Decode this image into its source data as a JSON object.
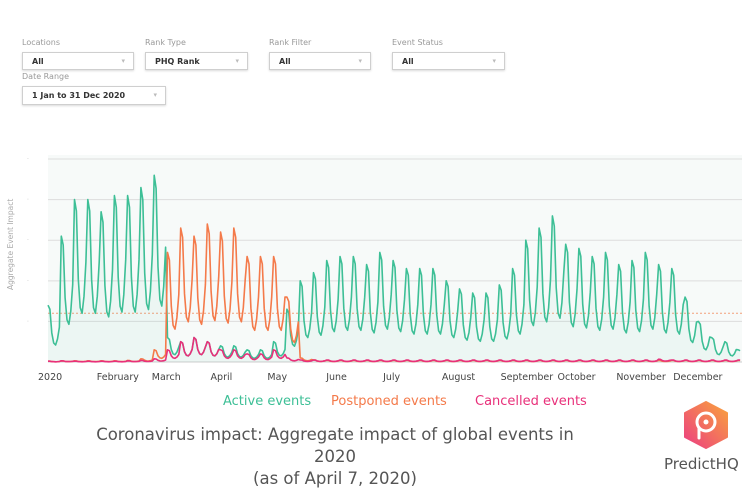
{
  "filters": {
    "locations": {
      "label": "Locations",
      "value": "All"
    },
    "rank_type": {
      "label": "Rank Type",
      "value": "PHQ Rank"
    },
    "rank_filter": {
      "label": "Rank Filter",
      "value": "All"
    },
    "event_status": {
      "label": "Event Status",
      "value": "All"
    },
    "date_range": {
      "label": "Date Range",
      "value": "1 Jan to 31 Dec 2020"
    }
  },
  "chart_data": {
    "type": "line",
    "title": "Coronavirus impact: Aggregate impact of global events in 2020",
    "subtitle": "(as of April 7, 2020)",
    "xlabel": "",
    "ylabel": "Aggregate Event Impact",
    "x_unit": "week of 2020 (weekly peak values; daily series oscillates between peak and trough)",
    "x_ticks": [
      "2020",
      "February",
      "March",
      "April",
      "May",
      "June",
      "July",
      "August",
      "September",
      "October",
      "November",
      "December"
    ],
    "x_tick_days": [
      0,
      31,
      60,
      91,
      121,
      152,
      182,
      213,
      244,
      274,
      305,
      335
    ],
    "ylim": [
      0,
      5.1
    ],
    "grid": true,
    "reference_line": 1.2,
    "trough_ratio": 0.3,
    "legend_position": "bottom",
    "series": [
      {
        "name": "Active events",
        "color": "#3dbf96",
        "weekly_peaks": [
          1.4,
          3.1,
          4.0,
          4.0,
          3.7,
          4.1,
          4.1,
          4.3,
          4.6,
          0.6,
          0.5,
          0.6,
          0.5,
          0.4,
          0.4,
          0.3,
          0.3,
          0.5,
          1.3,
          2.0,
          2.2,
          2.5,
          2.6,
          2.6,
          2.4,
          2.7,
          2.5,
          2.3,
          2.3,
          2.3,
          2.0,
          1.8,
          1.7,
          1.7,
          1.9,
          2.3,
          3.0,
          3.3,
          3.6,
          2.9,
          2.8,
          2.6,
          2.7,
          2.4,
          2.5,
          2.7,
          2.4,
          2.3,
          1.6,
          1.0,
          0.6,
          0.5,
          0.3
        ]
      },
      {
        "name": "Postponed events",
        "color": "#f47a4a",
        "weekly_peaks": [
          0.02,
          0.03,
          0.03,
          0.03,
          0.03,
          0.03,
          0.04,
          0.08,
          0.3,
          2.7,
          3.3,
          3.1,
          3.4,
          3.2,
          3.3,
          2.6,
          2.6,
          2.6,
          1.6,
          0.1,
          0.05,
          0.04,
          0.04,
          0.04,
          0.04,
          0.04,
          0.04,
          0.04,
          0.04,
          0.04,
          0.04,
          0.04,
          0.04,
          0.04,
          0.04,
          0.04,
          0.04,
          0.04,
          0.04,
          0.04,
          0.04,
          0.04,
          0.04,
          0.04,
          0.04,
          0.04,
          0.04,
          0.04,
          0.04,
          0.04,
          0.04,
          0.04,
          0.04
        ]
      },
      {
        "name": "Cancelled events",
        "color": "#e8307a",
        "weekly_peaks": [
          0.02,
          0.03,
          0.02,
          0.02,
          0.02,
          0.02,
          0.03,
          0.04,
          0.08,
          0.3,
          0.5,
          0.6,
          0.5,
          0.3,
          0.3,
          0.2,
          0.2,
          0.3,
          0.1,
          0.05,
          0.05,
          0.05,
          0.05,
          0.05,
          0.05,
          0.05,
          0.05,
          0.05,
          0.05,
          0.05,
          0.05,
          0.05,
          0.05,
          0.05,
          0.05,
          0.05,
          0.05,
          0.05,
          0.05,
          0.05,
          0.05,
          0.05,
          0.05,
          0.05,
          0.05,
          0.05,
          0.07,
          0.05,
          0.05,
          0.05,
          0.05,
          0.05,
          0.05
        ]
      }
    ]
  },
  "brand": "PredictHQ"
}
